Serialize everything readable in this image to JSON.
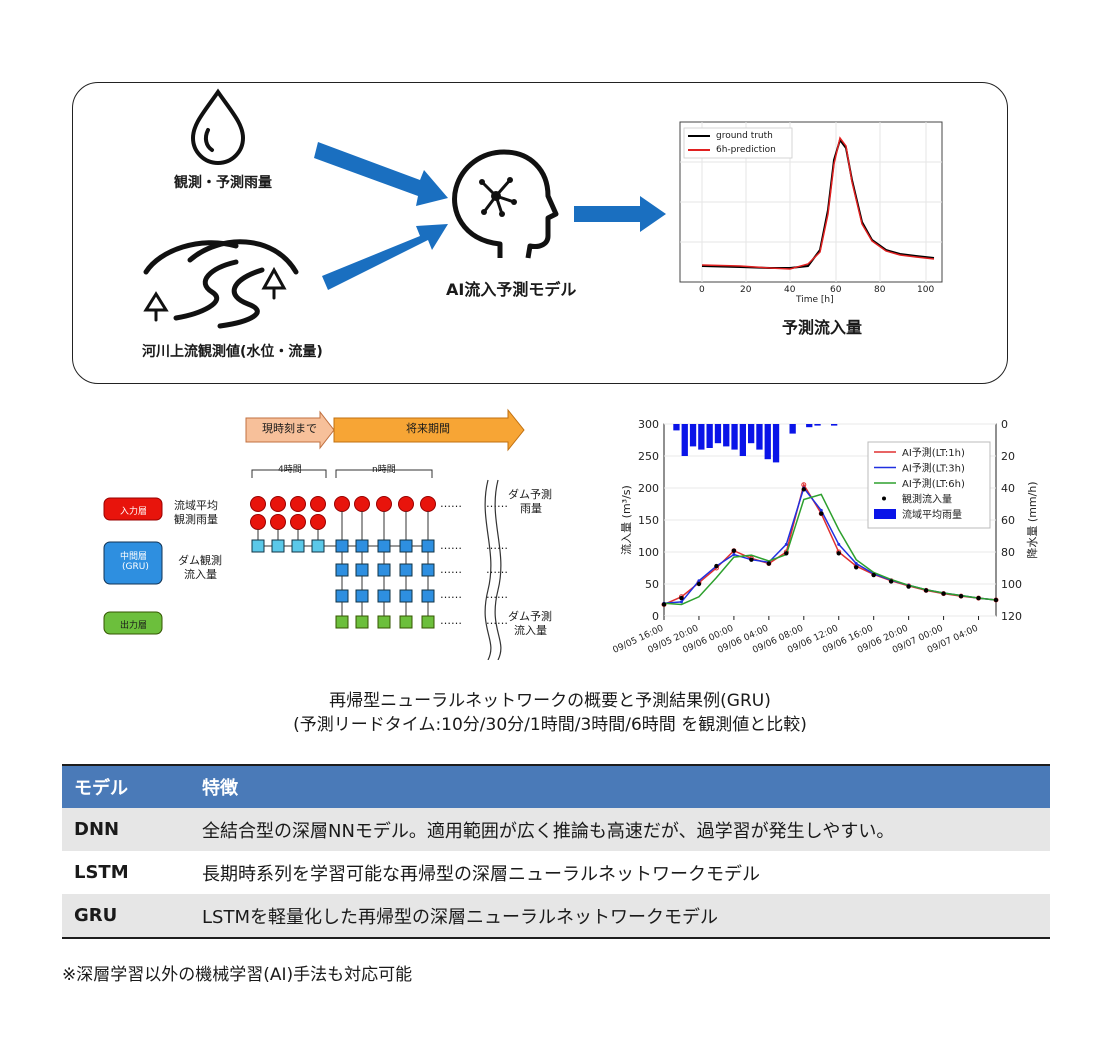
{
  "overview": {
    "rain_label": "観測・予測雨量",
    "river_label": "河川上流観測値(水位・流量)",
    "ai_label": "AI流入予測モデル",
    "output_label": "予測流入量",
    "mini_chart": {
      "legend": [
        "ground truth",
        "6h-prediction"
      ],
      "xlabel": "Time [h]",
      "xticks": [
        "0",
        "20",
        "40",
        "60",
        "80",
        "100"
      ]
    }
  },
  "rnn_diagram": {
    "arrow_past": "現時刻まで",
    "arrow_future": "将来期間",
    "past_hours": "4時間",
    "future_hours": "n時間",
    "legend_input": "入力層",
    "legend_hidden_1": "中間層",
    "legend_hidden_2": "(GRU)",
    "legend_output": "出力層",
    "input_desc_1": "流域平均",
    "input_desc_2": "観測雨量",
    "hidden_desc_1": "ダム観測",
    "hidden_desc_2": "流入量",
    "future_input_desc_1": "ダム予測",
    "future_input_desc_2": "雨量",
    "output_desc_1": "ダム予測",
    "output_desc_2": "流入量",
    "ellipsis": "……",
    "colors": {
      "input": "#e8140c",
      "hidden": "#2e8fe0",
      "output": "#6cbf3c",
      "past_arrow": "#f7c09a",
      "future_arrow": "#f7a535"
    }
  },
  "chart_data": {
    "type": "line",
    "ylabel": "流入量 (m³/s)",
    "ylabel_right": "降水量 (mm/h)",
    "ylim": [
      0,
      300
    ],
    "ylim_right": [
      120,
      0
    ],
    "yticks": [
      "0",
      "50",
      "100",
      "150",
      "200",
      "250",
      "300"
    ],
    "yticks_right": [
      "120",
      "100",
      "80",
      "60",
      "40",
      "20",
      "0"
    ],
    "x": [
      "09/05 16:00",
      "09/05 18:00",
      "09/05 20:00",
      "09/05 22:00",
      "09/06 00:00",
      "09/06 02:00",
      "09/06 04:00",
      "09/06 06:00",
      "09/06 08:00",
      "09/06 10:00",
      "09/06 12:00",
      "09/06 14:00",
      "09/06 16:00",
      "09/06 18:00",
      "09/06 20:00",
      "09/06 22:00",
      "09/07 00:00",
      "09/07 02:00",
      "09/07 04:00",
      "09/07 06:00"
    ],
    "xticks": [
      "09/05 16:00",
      "09/05 20:00",
      "09/06 00:00",
      "09/06 04:00",
      "09/06 08:00",
      "09/06 12:00",
      "09/06 16:00",
      "09/06 20:00",
      "09/07 00:00",
      "09/07 04:00"
    ],
    "legend_position": "top-right",
    "series": [
      {
        "name": "AI予測(LT:1h)",
        "color": "#e03030",
        "style": "line-circle",
        "values": [
          18,
          30,
          52,
          75,
          102,
          90,
          82,
          100,
          205,
          160,
          100,
          78,
          65,
          55,
          47,
          40,
          35,
          31,
          28,
          25
        ]
      },
      {
        "name": "AI予測(LT:3h)",
        "color": "#2030e0",
        "style": "line-star",
        "values": [
          20,
          22,
          55,
          78,
          96,
          88,
          84,
          112,
          200,
          165,
          112,
          82,
          66,
          56,
          48,
          41,
          36,
          32,
          28,
          25
        ]
      },
      {
        "name": "AI予測(LT:6h)",
        "color": "#2ea02e",
        "style": "line",
        "values": [
          20,
          18,
          30,
          60,
          92,
          95,
          86,
          96,
          182,
          190,
          135,
          88,
          68,
          57,
          48,
          41,
          36,
          32,
          28,
          25
        ]
      },
      {
        "name": "観測流入量",
        "color": "#000000",
        "style": "dots",
        "values": [
          18,
          28,
          50,
          78,
          102,
          88,
          82,
          98,
          198,
          160,
          98,
          76,
          64,
          54,
          46,
          40,
          35,
          31,
          28,
          25
        ]
      }
    ],
    "rain": {
      "name": "流域平均雨量",
      "color": "#0a14e8",
      "values": [
        0,
        4,
        20,
        14,
        16,
        15,
        12,
        14,
        16,
        20,
        12,
        16,
        22,
        24,
        0,
        6,
        0,
        2,
        1,
        0,
        1,
        0,
        0,
        0,
        0,
        0,
        0,
        0,
        0,
        0,
        0,
        0,
        0,
        0,
        0,
        0,
        0,
        0,
        0,
        0
      ]
    }
  },
  "caption": {
    "line1": "再帰型ニューラルネットワークの概要と予測結果例(GRU)",
    "line2": "(予測リードタイム:10分/30分/1時間/3時間/6時間 を観測値と比較)"
  },
  "table": {
    "header": [
      "モデル",
      "特徴"
    ],
    "rows": [
      [
        "DNN",
        "全結合型の深層NNモデル。適用範囲が広く推論も高速だが、過学習が発生しやすい。"
      ],
      [
        "LSTM",
        "長期時系列を学習可能な再帰型の深層ニューラルネットワークモデル"
      ],
      [
        "GRU",
        "LSTMを軽量化した再帰型の深層ニューラルネットワークモデル"
      ]
    ]
  },
  "footnote": "※深層学習以外の機械学習(AI)手法も対応可能"
}
